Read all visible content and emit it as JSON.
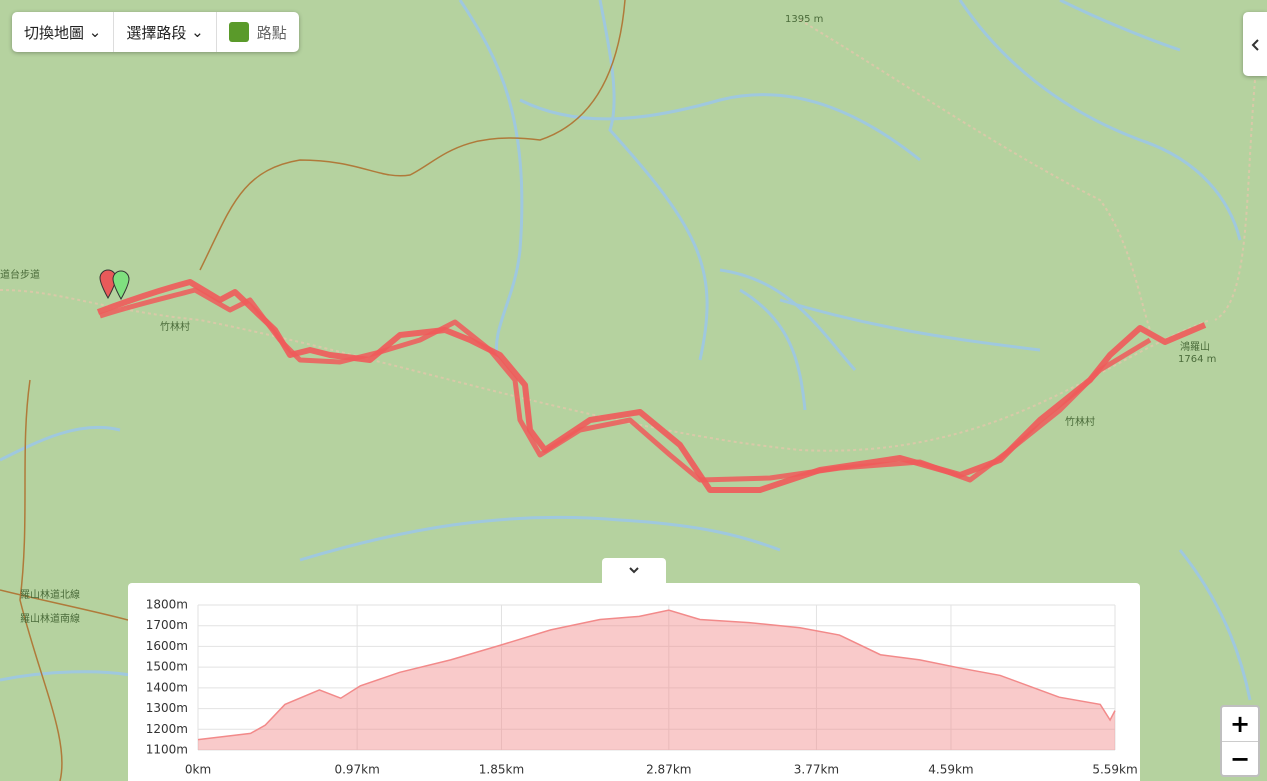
{
  "toolbar": {
    "map_switch": "切換地圖",
    "segment_select": "選擇路段",
    "waypoints": "路點"
  },
  "map_labels": {
    "peak_north": "1395 m",
    "peak_east_name": "鴻羅山",
    "peak_east": "1764 m",
    "village_west": "竹林村",
    "village_east": "竹林村",
    "trail_west": "道台步道",
    "road_west_1": "羅山林道北線",
    "road_west_2": "羅山林道南線"
  },
  "zoom": {
    "in": "+",
    "out": "−"
  },
  "chart_data": {
    "type": "area",
    "x": [
      0,
      0.32,
      0.41,
      0.53,
      0.74,
      0.87,
      0.99,
      1.23,
      1.54,
      1.84,
      2.15,
      2.45,
      2.69,
      2.87,
      3.06,
      3.36,
      3.67,
      3.91,
      4.16,
      4.4,
      4.65,
      4.89,
      5.13,
      5.25,
      5.5,
      5.56,
      5.59
    ],
    "values": [
      1150,
      1180,
      1220,
      1320,
      1390,
      1350,
      1410,
      1475,
      1535,
      1605,
      1680,
      1730,
      1745,
      1775,
      1730,
      1715,
      1690,
      1655,
      1560,
      1535,
      1495,
      1460,
      1390,
      1355,
      1320,
      1245,
      1290
    ],
    "color": "#f28a8a",
    "xlim": [
      0,
      5.59
    ],
    "xticks": [
      {
        "value": 0,
        "label": "0km"
      },
      {
        "value": 0.97,
        "label": "0.97km"
      },
      {
        "value": 1.85,
        "label": "1.85km"
      },
      {
        "value": 2.87,
        "label": "2.87km"
      },
      {
        "value": 3.77,
        "label": "3.77km"
      },
      {
        "value": 4.59,
        "label": "4.59km"
      },
      {
        "value": 5.59,
        "label": "5.59km"
      }
    ],
    "ylim": [
      1100,
      1800
    ],
    "yticks": [
      {
        "value": 1100,
        "label": "1100m"
      },
      {
        "value": 1200,
        "label": "1200m"
      },
      {
        "value": 1300,
        "label": "1300m"
      },
      {
        "value": 1400,
        "label": "1400m"
      },
      {
        "value": 1500,
        "label": "1500m"
      },
      {
        "value": 1600,
        "label": "1600m"
      },
      {
        "value": 1700,
        "label": "1700m"
      },
      {
        "value": 1800,
        "label": "1800m"
      }
    ],
    "grid": true
  }
}
